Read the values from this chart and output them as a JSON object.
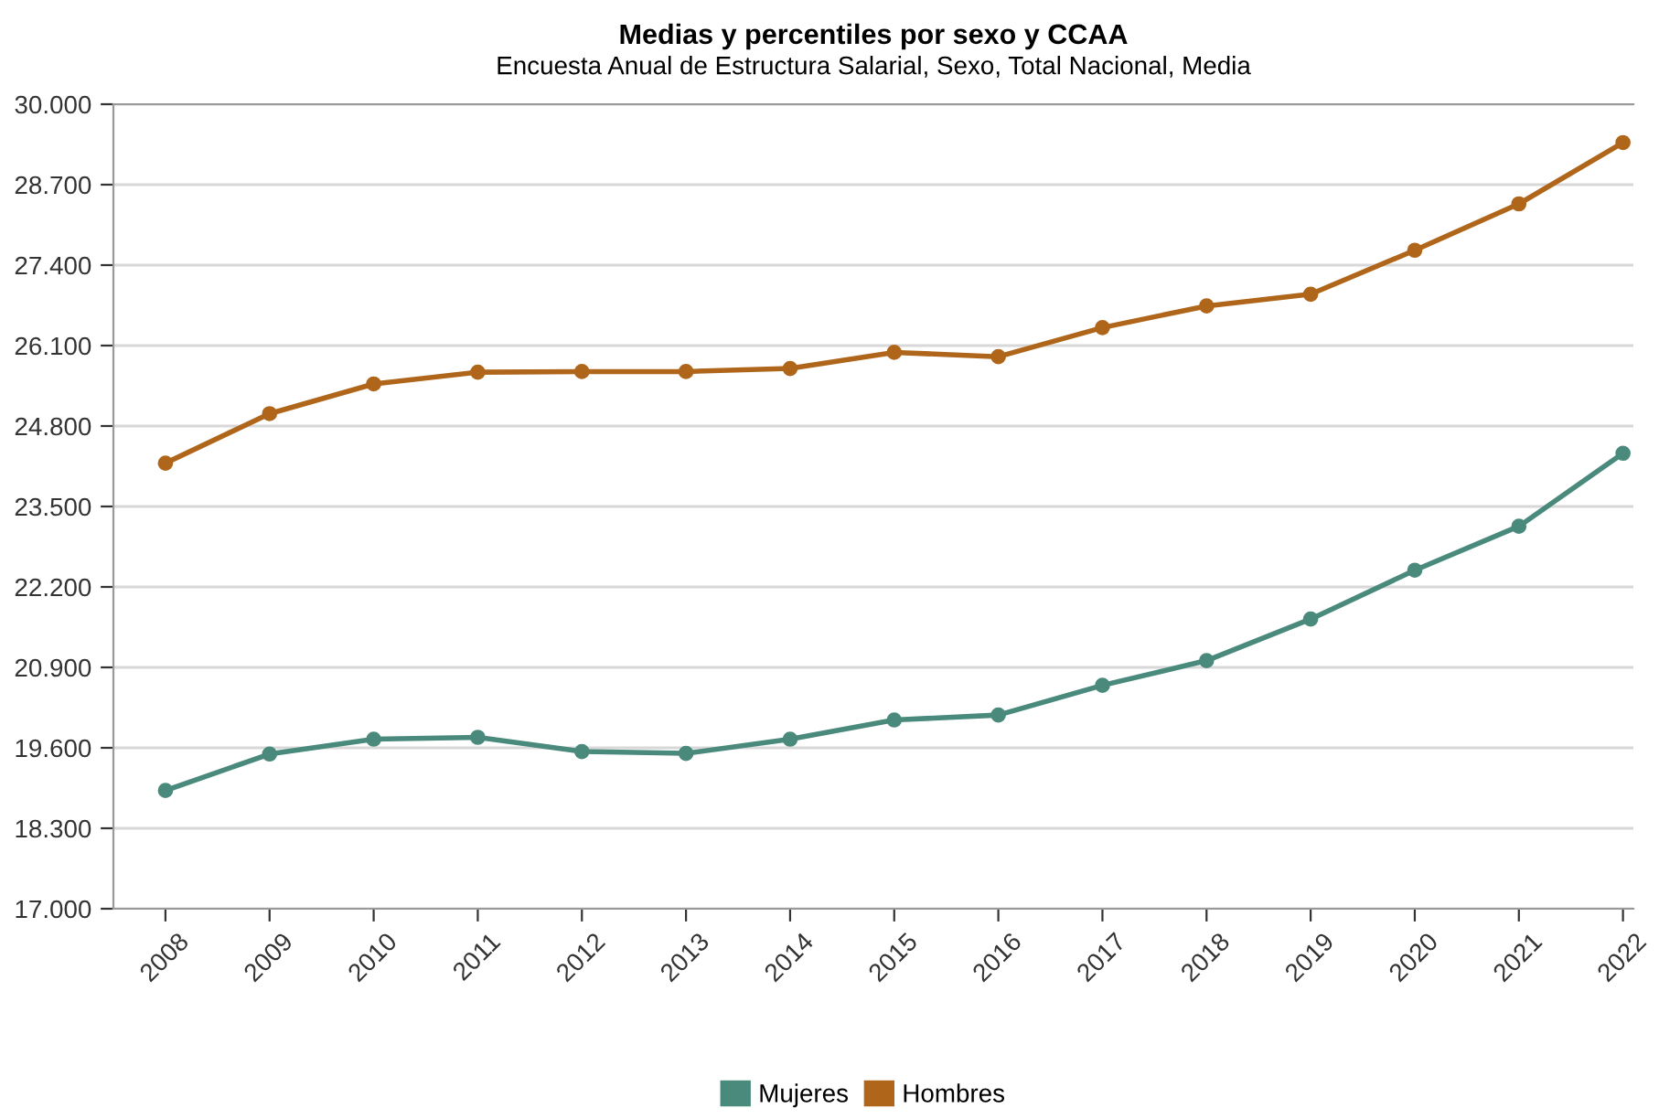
{
  "chart_data": {
    "type": "line",
    "title": "Medias y percentiles por sexo y CCAA",
    "subtitle": "Encuesta Anual de Estructura Salarial, Sexo, Total Nacional, Media",
    "categories": [
      "2008",
      "2009",
      "2010",
      "2011",
      "2012",
      "2013",
      "2014",
      "2015",
      "2016",
      "2017",
      "2018",
      "2019",
      "2020",
      "2021",
      "2022"
    ],
    "series": [
      {
        "name": "Mujeres",
        "color": "#4a8a7c",
        "values": [
          18910,
          19500,
          19740,
          19770,
          19540,
          19510,
          19740,
          20050,
          20130,
          20610,
          21010,
          21680,
          22470,
          23180,
          24360
        ]
      },
      {
        "name": "Hombres",
        "color": "#b0661a",
        "values": [
          24200,
          25000,
          25480,
          25670,
          25680,
          25680,
          25730,
          25990,
          25920,
          26390,
          26740,
          26930,
          27640,
          28390,
          29380
        ]
      }
    ],
    "ylim": [
      17000,
      30000
    ],
    "yticks": [
      {
        "value": 17000,
        "label": "17.000"
      },
      {
        "value": 18300,
        "label": "18.300"
      },
      {
        "value": 19600,
        "label": "19.600"
      },
      {
        "value": 20900,
        "label": "20.900"
      },
      {
        "value": 22200,
        "label": "22.200"
      },
      {
        "value": 23500,
        "label": "23.500"
      },
      {
        "value": 24800,
        "label": "24.800"
      },
      {
        "value": 26100,
        "label": "26.100"
      },
      {
        "value": 27400,
        "label": "27.400"
      },
      {
        "value": 28700,
        "label": "28.700"
      },
      {
        "value": 30000,
        "label": "30.000"
      }
    ],
    "grid": "y",
    "legend": "bottom",
    "marker": "circle",
    "line_style": "solid"
  }
}
